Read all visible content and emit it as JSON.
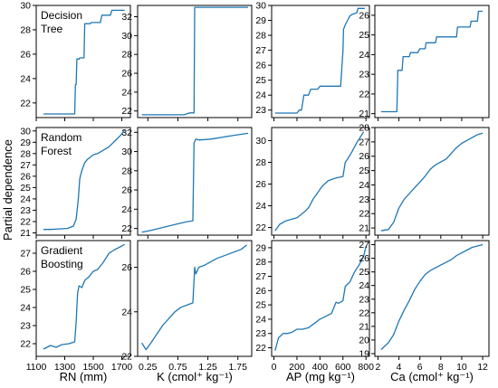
{
  "ylabel": "Partial dependence",
  "row_labels": [
    "Decision\nTree",
    "Random\nForest",
    "Gradient\nBoosting"
  ],
  "xlabels": [
    "RN (mm)",
    "K (cmol⁺ kg⁻¹)",
    "AP (mg kg⁻¹)",
    "Ca (cmol⁺ kg⁻¹)"
  ],
  "line_color": "#1f77b4",
  "xticks": [
    [
      1100,
      1300,
      1500,
      1700
    ],
    [
      0.25,
      0.75,
      1.25,
      1.75
    ],
    [
      0,
      200,
      400,
      600,
      800
    ],
    [
      2,
      4,
      6,
      8,
      10,
      12
    ]
  ],
  "xlims": [
    [
      1100,
      1760
    ],
    [
      0.08,
      1.98
    ],
    [
      -20,
      830
    ],
    [
      1.7,
      12.6
    ]
  ],
  "chart_data": [
    {
      "type": "line",
      "row": 0,
      "col": 0,
      "ylim": [
        20.8,
        30
      ],
      "yticks": [
        22,
        24,
        26,
        28,
        30
      ],
      "x": [
        1150,
        1370,
        1375,
        1380,
        1385,
        1400,
        1405,
        1435,
        1440,
        1480,
        1485,
        1550,
        1560,
        1620,
        1630,
        1720
      ],
      "y": [
        21.1,
        21.1,
        23.5,
        23.5,
        25.6,
        25.6,
        25.7,
        25.7,
        28.5,
        28.5,
        28.6,
        28.6,
        29.2,
        29.2,
        29.6,
        29.6
      ]
    },
    {
      "type": "line",
      "row": 0,
      "col": 1,
      "ylim": [
        21.3,
        33.2
      ],
      "yticks": [
        22,
        24,
        26,
        28,
        30,
        32
      ],
      "x": [
        0.15,
        0.85,
        0.95,
        1.02,
        1.03,
        1.92
      ],
      "y": [
        21.6,
        21.6,
        21.8,
        21.8,
        33.0,
        33.0
      ]
    },
    {
      "type": "line",
      "row": 0,
      "col": 2,
      "ylim": [
        22.5,
        30
      ],
      "yticks": [
        23,
        24,
        25,
        26,
        27,
        28,
        29,
        30
      ],
      "x": [
        10,
        200,
        220,
        240,
        260,
        300,
        320,
        380,
        400,
        580,
        590,
        600,
        605,
        620,
        640,
        660,
        680,
        720,
        730,
        790
      ],
      "y": [
        22.8,
        22.8,
        23.0,
        23.0,
        24.0,
        24.0,
        24.4,
        24.4,
        24.6,
        24.6,
        25.8,
        27.0,
        28.4,
        28.7,
        29.0,
        29.3,
        29.4,
        29.5,
        29.8,
        29.8
      ]
    },
    {
      "type": "line",
      "row": 0,
      "col": 3,
      "ylim": [
        20.8,
        26.5
      ],
      "yticks": [
        21,
        22,
        23,
        24,
        25,
        26
      ],
      "x": [
        2.3,
        3.8,
        3.9,
        4.3,
        4.4,
        5.0,
        5.1,
        5.8,
        6.0,
        6.5,
        6.6,
        7.5,
        7.6,
        9.5,
        9.6,
        10.8,
        10.9,
        11.5,
        11.6,
        12.0
      ],
      "y": [
        21.1,
        21.1,
        23.2,
        23.2,
        23.9,
        23.9,
        24.1,
        24.1,
        24.3,
        24.3,
        24.6,
        24.6,
        24.9,
        24.9,
        25.4,
        25.4,
        25.7,
        25.7,
        26.2,
        26.2
      ]
    },
    {
      "type": "line",
      "row": 1,
      "col": 0,
      "ylim": [
        20.8,
        30.3
      ],
      "yticks": [
        21,
        22,
        23,
        24,
        25,
        26,
        27,
        28,
        29,
        30
      ],
      "x": [
        1150,
        1200,
        1260,
        1320,
        1360,
        1380,
        1395,
        1405,
        1420,
        1440,
        1460,
        1480,
        1500,
        1530,
        1570,
        1610,
        1650,
        1690,
        1720
      ],
      "y": [
        21.3,
        21.3,
        21.35,
        21.4,
        21.6,
        22.2,
        24.0,
        25.8,
        26.5,
        27.2,
        27.5,
        27.7,
        27.9,
        28.0,
        28.3,
        28.6,
        29.1,
        29.6,
        30.1
      ]
    },
    {
      "type": "line",
      "row": 1,
      "col": 1,
      "ylim": [
        21.3,
        32.5
      ],
      "yticks": [
        22,
        24,
        26,
        28,
        30,
        32
      ],
      "x": [
        0.15,
        0.3,
        0.5,
        0.7,
        0.9,
        1.0,
        1.02,
        1.05,
        1.1,
        1.3,
        1.5,
        1.7,
        1.92
      ],
      "y": [
        21.6,
        21.8,
        22.1,
        22.4,
        22.7,
        22.8,
        30.9,
        31.3,
        31.2,
        31.3,
        31.5,
        31.7,
        31.9
      ]
    },
    {
      "type": "line",
      "row": 1,
      "col": 2,
      "ylim": [
        21.3,
        31.2
      ],
      "yticks": [
        22,
        24,
        26,
        28,
        30
      ],
      "x": [
        10,
        50,
        100,
        200,
        260,
        300,
        340,
        380,
        420,
        470,
        520,
        560,
        600,
        620,
        640,
        680,
        720,
        780
      ],
      "y": [
        21.7,
        22.3,
        22.6,
        22.9,
        23.4,
        23.8,
        24.6,
        25.2,
        25.8,
        26.3,
        26.5,
        26.6,
        26.7,
        28.0,
        28.3,
        29.0,
        29.8,
        30.8
      ]
    },
    {
      "type": "line",
      "row": 1,
      "col": 3,
      "ylim": [
        20.5,
        28
      ],
      "yticks": [
        21,
        22,
        23,
        24,
        25,
        26,
        27,
        28
      ],
      "x": [
        2.3,
        3.0,
        3.5,
        4.0,
        4.5,
        5.0,
        5.5,
        6.0,
        6.5,
        7.0,
        7.5,
        8.0,
        8.5,
        9.0,
        9.5,
        10.0,
        10.5,
        11.0,
        11.5,
        12.0
      ],
      "y": [
        20.8,
        20.9,
        21.4,
        22.4,
        23.0,
        23.4,
        23.8,
        24.2,
        24.6,
        25.1,
        25.4,
        25.6,
        25.8,
        26.2,
        26.6,
        26.9,
        27.1,
        27.3,
        27.5,
        27.6
      ]
    },
    {
      "type": "line",
      "row": 2,
      "col": 0,
      "ylim": [
        21.3,
        27.7
      ],
      "yticks": [
        22,
        23,
        24,
        25,
        26,
        27
      ],
      "x": [
        1150,
        1200,
        1240,
        1280,
        1330,
        1370,
        1380,
        1390,
        1400,
        1420,
        1440,
        1470,
        1500,
        1530,
        1570,
        1610,
        1650,
        1700,
        1720
      ],
      "y": [
        21.7,
        21.9,
        21.8,
        21.95,
        22.0,
        22.1,
        23.2,
        24.8,
        25.2,
        25.1,
        25.5,
        25.7,
        26.0,
        26.1,
        26.5,
        27.0,
        27.2,
        27.4,
        27.5
      ]
    },
    {
      "type": "line",
      "row": 2,
      "col": 1,
      "ylim": [
        22,
        27.2
      ],
      "yticks": [
        22,
        24,
        26
      ],
      "x": [
        0.15,
        0.22,
        0.3,
        0.4,
        0.5,
        0.6,
        0.7,
        0.8,
        0.9,
        1.0,
        1.03,
        1.05,
        1.1,
        1.2,
        1.4,
        1.6,
        1.8,
        1.9
      ],
      "y": [
        22.6,
        22.3,
        22.6,
        23.0,
        23.4,
        23.7,
        24.0,
        24.2,
        24.3,
        24.4,
        26.0,
        25.7,
        26.0,
        26.1,
        26.4,
        26.6,
        26.8,
        27.0
      ]
    },
    {
      "type": "line",
      "row": 2,
      "col": 2,
      "ylim": [
        21.4,
        29.5
      ],
      "yticks": [
        22,
        23,
        24,
        25,
        26,
        27,
        28,
        29
      ],
      "x": [
        10,
        40,
        80,
        120,
        160,
        200,
        250,
        300,
        350,
        400,
        450,
        500,
        540,
        560,
        600,
        620,
        660,
        700,
        740,
        780,
        800
      ],
      "y": [
        21.8,
        22.7,
        23.0,
        23.0,
        23.1,
        23.3,
        23.3,
        23.4,
        23.7,
        24.0,
        24.2,
        24.4,
        25.2,
        25.1,
        25.3,
        26.3,
        26.6,
        27.3,
        27.8,
        28.4,
        29.1
      ]
    },
    {
      "type": "line",
      "row": 2,
      "col": 3,
      "ylim": [
        18.8,
        27.3
      ],
      "yticks": [
        19,
        20,
        21,
        22,
        23,
        24,
        25,
        26,
        27
      ],
      "x": [
        2.3,
        3.0,
        3.5,
        4.0,
        4.5,
        5.0,
        5.5,
        6.0,
        6.5,
        7.0,
        7.5,
        8.0,
        8.5,
        9.0,
        9.5,
        10.0,
        10.5,
        11.0,
        11.5,
        12.0
      ],
      "y": [
        19.3,
        19.8,
        20.4,
        21.4,
        22.2,
        22.9,
        23.7,
        24.3,
        24.8,
        25.1,
        25.3,
        25.5,
        25.7,
        25.9,
        26.2,
        26.4,
        26.6,
        26.8,
        26.9,
        27.0
      ]
    }
  ]
}
